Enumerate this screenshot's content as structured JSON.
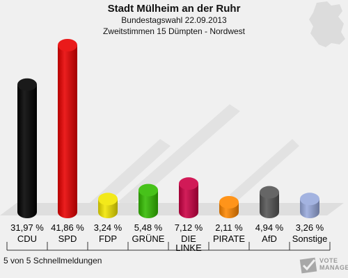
{
  "header": {
    "title": "Stadt Mülheim an der Ruhr",
    "subtitle_line1": "Bundestagswahl 22.09.2013",
    "subtitle_line2": "Zweitstimmen 15 Dümpten - Nordwest"
  },
  "footer": {
    "note": "5 von 5 Schnellmeldungen",
    "logo_text_line1": "VOTE",
    "logo_text_line2": "MANAGER"
  },
  "chart_data": {
    "type": "bar",
    "categories": [
      "CDU",
      "SPD",
      "FDP",
      "GRÜNE",
      "DIE LINKE",
      "PIRATE",
      "AfD",
      "Sonstige"
    ],
    "values": [
      31.97,
      41.86,
      3.24,
      5.48,
      7.12,
      2.11,
      4.94,
      3.26
    ],
    "value_labels": [
      "31,97 %",
      "41,86 %",
      "3,24 %",
      "5,48 %",
      "7,12 %",
      "2,11 %",
      "4,94 %",
      "3,26 %"
    ],
    "colors": [
      "#000000",
      "#e80000",
      "#f2e600",
      "#33bb00",
      "#cc0044",
      "#ff8800",
      "#555555",
      "#99aadd"
    ],
    "title": "Stadt Mülheim an der Ruhr",
    "ylim": [
      0,
      41.86
    ],
    "grid": false,
    "legend": "none"
  }
}
